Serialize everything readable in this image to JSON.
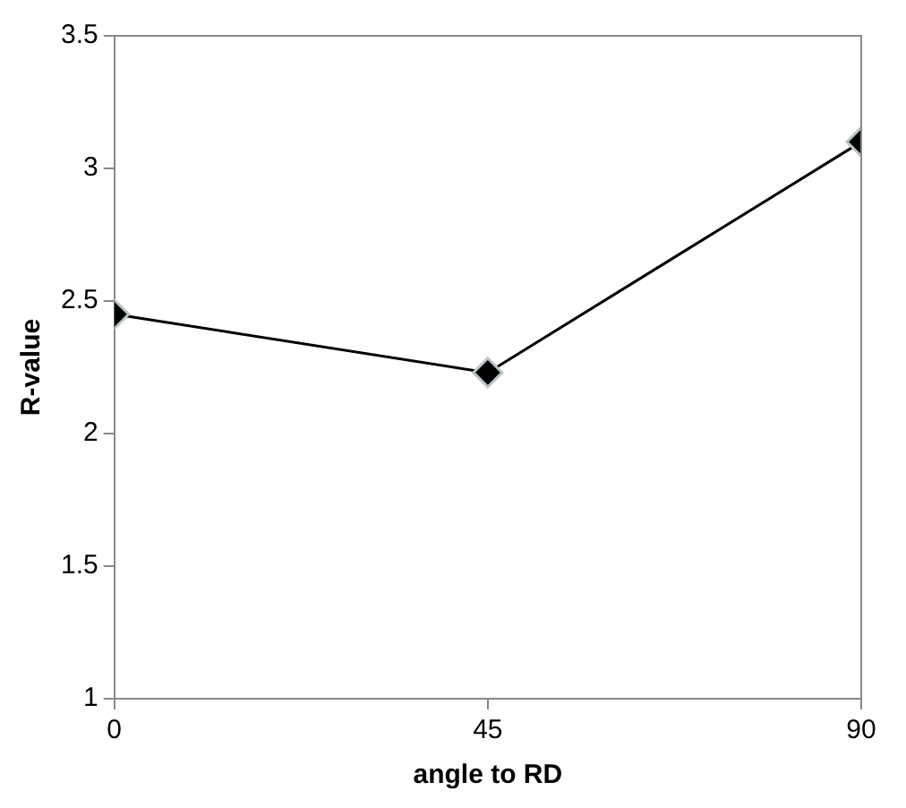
{
  "chart_data": {
    "type": "line",
    "xlabel": "angle to RD",
    "ylabel": "R-value",
    "x": [
      0,
      45,
      90
    ],
    "series": [
      {
        "color": "#000000",
        "values": [
          2.45,
          2.23,
          3.1
        ]
      }
    ],
    "xlim": [
      0,
      90
    ],
    "xticks": [
      0,
      45,
      90
    ],
    "ylim": [
      1,
      3.5
    ],
    "yticks": [
      1,
      1.5,
      2,
      2.5,
      3,
      3.5
    ],
    "grid": false,
    "legend": false,
    "marker": "diamond",
    "line_style": "solid"
  }
}
